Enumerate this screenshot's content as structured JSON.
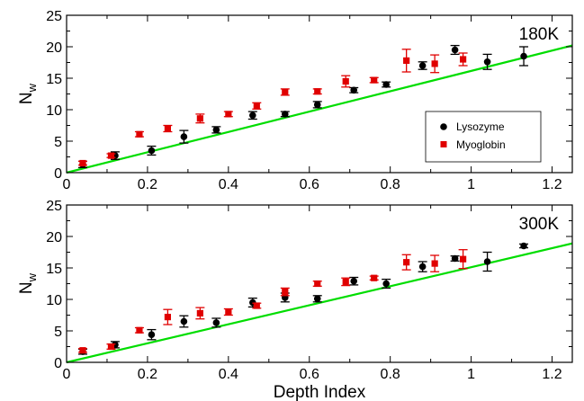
{
  "chart_data": [
    {
      "type": "scatter",
      "annotation": "180K",
      "xlabel": "",
      "ylabel_main": "N",
      "ylabel_sub": "w",
      "xlim": [
        0,
        1.25
      ],
      "ylim": [
        0,
        25
      ],
      "xticks": [
        "0",
        "0.2",
        "0.4",
        "0.6",
        "0.8",
        "1",
        "1.2"
      ],
      "yticks": [
        "0",
        "5",
        "10",
        "15",
        "20",
        "25"
      ],
      "grid": false,
      "legend": "lower-right",
      "series": [
        {
          "name": "Lysozyme",
          "color": "#000000",
          "marker": "circle",
          "points": [
            {
              "x": 0.04,
              "y": 1.3,
              "err": 0.5
            },
            {
              "x": 0.12,
              "y": 2.7,
              "err": 0.6
            },
            {
              "x": 0.21,
              "y": 3.5,
              "err": 0.7
            },
            {
              "x": 0.29,
              "y": 5.7,
              "err": 1.0
            },
            {
              "x": 0.37,
              "y": 6.8,
              "err": 0.5
            },
            {
              "x": 0.46,
              "y": 9.1,
              "err": 0.6
            },
            {
              "x": 0.54,
              "y": 9.3,
              "err": 0.4
            },
            {
              "x": 0.62,
              "y": 10.8,
              "err": 0.5
            },
            {
              "x": 0.71,
              "y": 13.1,
              "err": 0.4
            },
            {
              "x": 0.79,
              "y": 14.0,
              "err": 0.4
            },
            {
              "x": 0.88,
              "y": 17.0,
              "err": 0.6
            },
            {
              "x": 0.96,
              "y": 19.5,
              "err": 0.7
            },
            {
              "x": 1.04,
              "y": 17.6,
              "err": 1.2
            },
            {
              "x": 1.13,
              "y": 18.5,
              "err": 1.5
            }
          ]
        },
        {
          "name": "Myoglobin",
          "color": "#e00000",
          "marker": "square",
          "points": [
            {
              "x": 0.04,
              "y": 1.5,
              "err": 0.3
            },
            {
              "x": 0.11,
              "y": 2.7,
              "err": 0.3
            },
            {
              "x": 0.18,
              "y": 6.1,
              "err": 0.4
            },
            {
              "x": 0.25,
              "y": 7.0,
              "err": 0.5
            },
            {
              "x": 0.33,
              "y": 8.6,
              "err": 0.7
            },
            {
              "x": 0.4,
              "y": 9.3,
              "err": 0.4
            },
            {
              "x": 0.47,
              "y": 10.6,
              "err": 0.5
            },
            {
              "x": 0.54,
              "y": 12.8,
              "err": 0.5
            },
            {
              "x": 0.62,
              "y": 12.9,
              "err": 0.4
            },
            {
              "x": 0.69,
              "y": 14.5,
              "err": 0.9
            },
            {
              "x": 0.76,
              "y": 14.7,
              "err": 0.4
            },
            {
              "x": 0.84,
              "y": 17.8,
              "err": 1.8
            },
            {
              "x": 0.91,
              "y": 17.3,
              "err": 1.4
            },
            {
              "x": 0.98,
              "y": 18.0,
              "err": 1.0
            }
          ]
        }
      ],
      "fit_line": {
        "color": "#00dd00",
        "x": [
          0,
          1.25
        ],
        "y": [
          0,
          20.2
        ]
      }
    },
    {
      "type": "scatter",
      "annotation": "300K",
      "xlabel": "Depth Index",
      "ylabel_main": "N",
      "ylabel_sub": "w",
      "xlim": [
        0,
        1.25
      ],
      "ylim": [
        0,
        25
      ],
      "xticks": [
        "0",
        "0.2",
        "0.4",
        "0.6",
        "0.8",
        "1",
        "1.2"
      ],
      "yticks": [
        "0",
        "5",
        "10",
        "15",
        "20",
        "25"
      ],
      "grid": false,
      "series": [
        {
          "name": "Lysozyme",
          "color": "#000000",
          "marker": "circle",
          "points": [
            {
              "x": 0.04,
              "y": 1.7,
              "err": 0.4
            },
            {
              "x": 0.12,
              "y": 2.8,
              "err": 0.5
            },
            {
              "x": 0.21,
              "y": 4.4,
              "err": 0.8
            },
            {
              "x": 0.29,
              "y": 6.5,
              "err": 0.9
            },
            {
              "x": 0.37,
              "y": 6.3,
              "err": 0.7
            },
            {
              "x": 0.46,
              "y": 9.5,
              "err": 0.7
            },
            {
              "x": 0.54,
              "y": 10.3,
              "err": 0.7
            },
            {
              "x": 0.62,
              "y": 10.1,
              "err": 0.5
            },
            {
              "x": 0.71,
              "y": 12.9,
              "err": 0.6
            },
            {
              "x": 0.79,
              "y": 12.5,
              "err": 0.7
            },
            {
              "x": 0.88,
              "y": 15.2,
              "err": 0.8
            },
            {
              "x": 0.96,
              "y": 16.5,
              "err": 0.4
            },
            {
              "x": 1.04,
              "y": 16.0,
              "err": 1.5
            },
            {
              "x": 1.13,
              "y": 18.5,
              "err": 0.3
            }
          ]
        },
        {
          "name": "Myoglobin",
          "color": "#e00000",
          "marker": "square",
          "points": [
            {
              "x": 0.04,
              "y": 1.9,
              "err": 0.3
            },
            {
              "x": 0.11,
              "y": 2.5,
              "err": 0.4
            },
            {
              "x": 0.18,
              "y": 5.1,
              "err": 0.4
            },
            {
              "x": 0.25,
              "y": 7.2,
              "err": 1.2
            },
            {
              "x": 0.33,
              "y": 7.8,
              "err": 0.9
            },
            {
              "x": 0.4,
              "y": 8.0,
              "err": 0.5
            },
            {
              "x": 0.47,
              "y": 9.0,
              "err": 0.4
            },
            {
              "x": 0.54,
              "y": 11.2,
              "err": 0.6
            },
            {
              "x": 0.62,
              "y": 12.5,
              "err": 0.4
            },
            {
              "x": 0.69,
              "y": 12.8,
              "err": 0.6
            },
            {
              "x": 0.76,
              "y": 13.4,
              "err": 0.3
            },
            {
              "x": 0.84,
              "y": 15.9,
              "err": 1.2
            },
            {
              "x": 0.91,
              "y": 15.7,
              "err": 1.3
            },
            {
              "x": 0.98,
              "y": 16.4,
              "err": 1.5
            }
          ]
        }
      ],
      "fit_line": {
        "color": "#00dd00",
        "x": [
          0,
          1.25
        ],
        "y": [
          0,
          18.9
        ]
      }
    }
  ]
}
